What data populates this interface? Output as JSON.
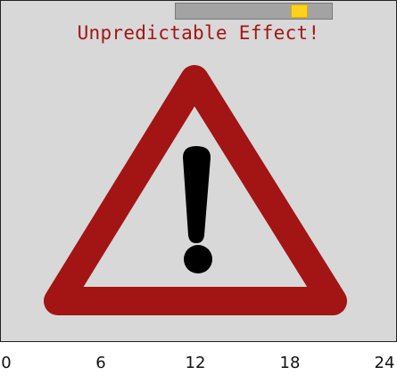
{
  "title": "Unpredictable Effect!",
  "slider": {
    "position_fraction": 0.83
  },
  "icon": "warning-triangle-icon",
  "colors": {
    "background": "#d8d8d8",
    "triangle": "#a31414",
    "exclamation": "#000000",
    "slider_track": "#a3a3a3",
    "slider_thumb": "#ffd21f",
    "title": "#a31414"
  },
  "axis": {
    "min": 0,
    "max": 24,
    "ticks": [
      "0",
      "6",
      "12",
      "18",
      "24"
    ]
  }
}
